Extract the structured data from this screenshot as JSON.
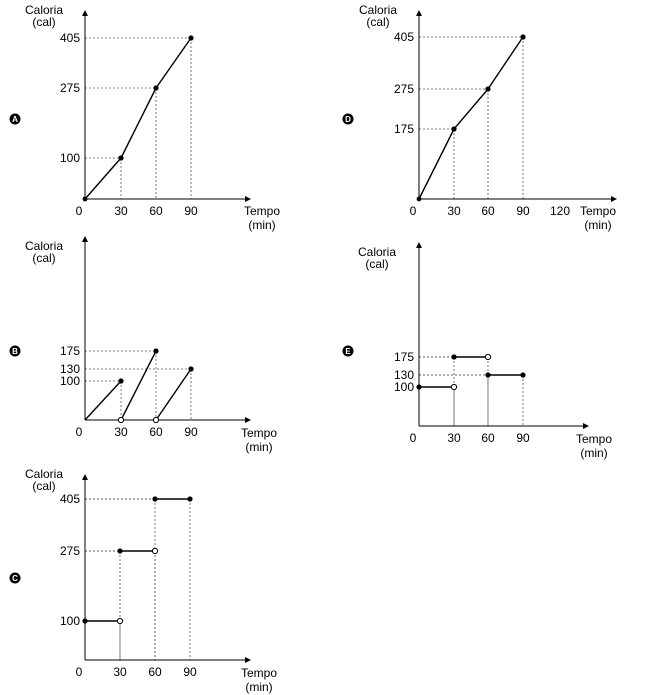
{
  "chart_data": [
    {
      "id": "A",
      "type": "line",
      "ylabel_line1": "Caloria",
      "ylabel_line2": "(cal)",
      "xlabel_line1": "Tempo",
      "xlabel_line2": "(min)",
      "x_ticks": [
        "0",
        "30",
        "60",
        "90"
      ],
      "y_ticks": [
        "100",
        "275",
        "405"
      ],
      "grid": "dashed guide lines to each point",
      "points": [
        [
          0,
          0
        ],
        [
          30,
          100
        ],
        [
          60,
          275
        ],
        [
          90,
          405
        ]
      ],
      "segments": [
        [
          [
            0,
            0
          ],
          [
            30,
            100
          ]
        ],
        [
          [
            30,
            100
          ],
          [
            60,
            275
          ]
        ],
        [
          [
            60,
            275
          ],
          [
            90,
            405
          ]
        ]
      ],
      "closed_points": [
        [
          30,
          100
        ],
        [
          60,
          275
        ],
        [
          90,
          405
        ]
      ],
      "open_points": []
    },
    {
      "id": "D",
      "type": "line",
      "ylabel_line1": "Caloria",
      "ylabel_line2": "(cal)",
      "xlabel_line1": "Tempo",
      "xlabel_line2": "(min)",
      "x_ticks": [
        "0",
        "30",
        "60",
        "90",
        "120"
      ],
      "y_ticks": [
        "175",
        "275",
        "405"
      ],
      "grid": "dashed guide lines to each point",
      "points": [
        [
          0,
          0
        ],
        [
          30,
          175
        ],
        [
          60,
          275
        ],
        [
          90,
          405
        ]
      ],
      "segments": [
        [
          [
            0,
            0
          ],
          [
            30,
            175
          ]
        ],
        [
          [
            30,
            175
          ],
          [
            60,
            275
          ]
        ],
        [
          [
            60,
            275
          ],
          [
            90,
            405
          ]
        ]
      ],
      "closed_points": [
        [
          30,
          175
        ],
        [
          60,
          275
        ],
        [
          90,
          405
        ]
      ],
      "open_points": []
    },
    {
      "id": "B",
      "type": "line",
      "ylabel_line1": "Caloria",
      "ylabel_line2": "(cal)",
      "xlabel_line1": "Tempo",
      "xlabel_line2": "(min)",
      "x_ticks": [
        "0",
        "30",
        "60",
        "90"
      ],
      "y_ticks": [
        "100",
        "130",
        "175"
      ],
      "grid": "dashed guide lines to each point",
      "segments": [
        [
          [
            0,
            0
          ],
          [
            30,
            100
          ]
        ],
        [
          [
            30,
            0
          ],
          [
            60,
            175
          ]
        ],
        [
          [
            60,
            0
          ],
          [
            90,
            130
          ]
        ]
      ],
      "closed_points": [
        [
          30,
          100
        ],
        [
          60,
          175
        ],
        [
          90,
          130
        ]
      ],
      "open_points": [
        [
          30,
          0
        ],
        [
          60,
          0
        ]
      ]
    },
    {
      "id": "E",
      "type": "line",
      "ylabel_line1": "Caloria",
      "ylabel_line2": "(cal)",
      "xlabel_line1": "Tempo",
      "xlabel_line2": "(min)",
      "x_ticks": [
        "0",
        "30",
        "60",
        "90"
      ],
      "y_ticks": [
        "100",
        "130",
        "175"
      ],
      "grid": "dashed guide lines to each point",
      "segments": [
        [
          [
            0,
            100
          ],
          [
            30,
            100
          ]
        ],
        [
          [
            30,
            175
          ],
          [
            60,
            175
          ]
        ],
        [
          [
            60,
            130
          ],
          [
            90,
            130
          ]
        ]
      ],
      "closed_points": [
        [
          0,
          100
        ],
        [
          30,
          175
        ],
        [
          60,
          130
        ],
        [
          90,
          130
        ]
      ],
      "open_points": [
        [
          30,
          100
        ],
        [
          60,
          175
        ]
      ]
    },
    {
      "id": "C",
      "type": "line",
      "ylabel_line1": "Caloria",
      "ylabel_line2": "(cal)",
      "xlabel_line1": "Tempo",
      "xlabel_line2": "(min)",
      "x_ticks": [
        "0",
        "30",
        "60",
        "90"
      ],
      "y_ticks": [
        "100",
        "275",
        "405"
      ],
      "grid": "dashed guide lines to each point",
      "segments": [
        [
          [
            0,
            100
          ],
          [
            30,
            100
          ]
        ],
        [
          [
            30,
            275
          ],
          [
            60,
            275
          ]
        ],
        [
          [
            60,
            405
          ],
          [
            90,
            405
          ]
        ]
      ],
      "closed_points": [
        [
          0,
          100
        ],
        [
          30,
          275
        ],
        [
          60,
          405
        ],
        [
          90,
          405
        ]
      ],
      "open_points": [
        [
          30,
          100
        ],
        [
          60,
          275
        ]
      ]
    }
  ]
}
